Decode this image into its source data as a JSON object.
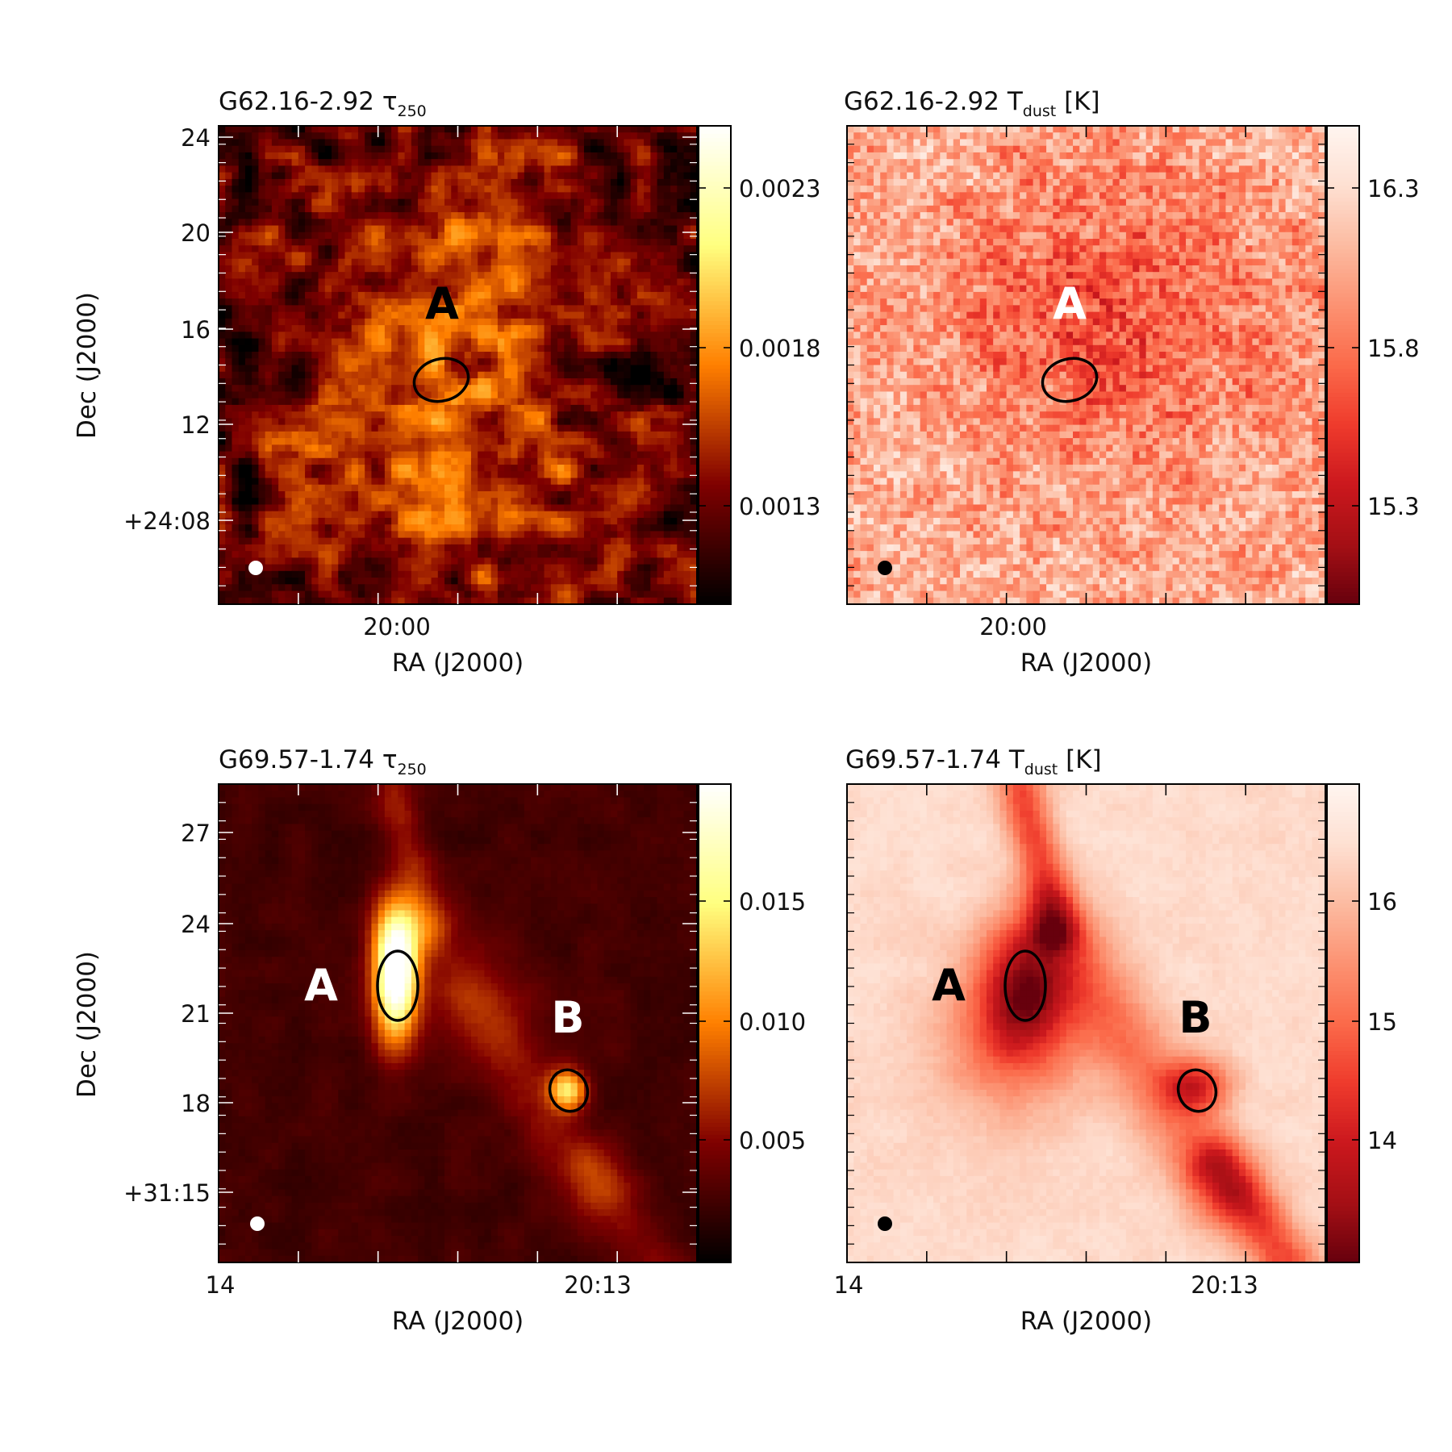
{
  "chart_data": [
    {
      "type": "heatmap",
      "id": "tl",
      "colormap": "afmhot",
      "title": "G62.16-2.92",
      "quantity": "τ",
      "quantity_sub": "250",
      "unit": "",
      "xlabel": "RA (J2000)",
      "ylabel": "Dec (J2000)",
      "x_ticks": [
        "20:00"
      ],
      "y_ticks": [
        "24",
        "20",
        "16",
        "12",
        "+24:08"
      ],
      "colorbar": {
        "range": [
          0.0008,
          0.0026
        ],
        "ticks": [
          0.0013,
          0.0018,
          0.0023
        ],
        "tick_labels": [
          "0.0013",
          "0.0018",
          "0.0023"
        ]
      },
      "sources": [
        {
          "label": "A",
          "label_color": "#000000"
        }
      ],
      "beam_color": "#ffffff",
      "map_range": [
        0.0008,
        0.0026
      ]
    },
    {
      "type": "heatmap",
      "id": "tr",
      "colormap": "reds",
      "title": "G62.16-2.92",
      "quantity": "T",
      "quantity_sub": "dust",
      "unit": " [K]",
      "xlabel": "RA (J2000)",
      "ylabel": "",
      "x_ticks": [
        "20:00"
      ],
      "y_ticks": [],
      "colorbar": {
        "range": [
          15.0,
          16.5
        ],
        "ticks": [
          15.3,
          15.8,
          16.3
        ],
        "tick_labels": [
          "15.3",
          "15.8",
          "16.3"
        ]
      },
      "sources": [
        {
          "label": "A",
          "label_color": "#ffffff"
        }
      ],
      "beam_color": "#000000",
      "map_range": [
        15.0,
        16.5
      ]
    },
    {
      "type": "heatmap",
      "id": "bl",
      "colormap": "afmhot",
      "title": "G69.57-1.74",
      "quantity": "τ",
      "quantity_sub": "250",
      "unit": "",
      "xlabel": "RA (J2000)",
      "ylabel": "Dec (J2000)",
      "x_ticks": [
        "14",
        "20:13"
      ],
      "y_ticks": [
        "27",
        "24",
        "21",
        "18",
        "+31:15"
      ],
      "colorbar": {
        "range": [
          0.0,
          0.02
        ],
        "ticks": [
          0.005,
          0.01,
          0.015
        ],
        "tick_labels": [
          "0.005",
          "0.010",
          "0.015"
        ]
      },
      "sources": [
        {
          "label": "A",
          "label_color": "#ffffff"
        },
        {
          "label": "B",
          "label_color": "#ffffff"
        }
      ],
      "beam_color": "#ffffff",
      "map_range": [
        0.0,
        0.02
      ]
    },
    {
      "type": "heatmap",
      "id": "br",
      "colormap": "reds",
      "title": "G69.57-1.74",
      "quantity": "T",
      "quantity_sub": "dust",
      "unit": " [K]",
      "xlabel": "RA (J2000)",
      "ylabel": "",
      "x_ticks": [
        "14",
        "20:13"
      ],
      "y_ticks": [],
      "colorbar": {
        "range": [
          13.0,
          17.0
        ],
        "ticks": [
          14,
          15,
          16
        ],
        "tick_labels": [
          "14",
          "15",
          "16"
        ]
      },
      "sources": [
        {
          "label": "A",
          "label_color": "#000000"
        },
        {
          "label": "B",
          "label_color": "#000000"
        }
      ],
      "beam_color": "#000000",
      "map_range": [
        13.0,
        17.0
      ]
    }
  ]
}
